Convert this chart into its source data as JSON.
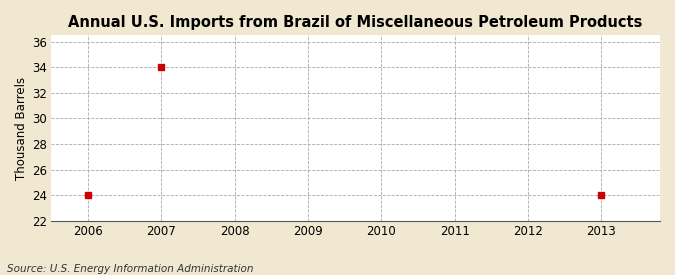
{
  "title": "Annual U.S. Imports from Brazil of Miscellaneous Petroleum Products",
  "ylabel": "Thousand Barrels",
  "source": "Source: U.S. Energy Information Administration",
  "background_color": "#f0e8d0",
  "plot_bg_color": "#ffffff",
  "data_x": [
    2006,
    2007,
    2013
  ],
  "data_y": [
    24,
    34,
    24
  ],
  "marker_color": "#cc0000",
  "marker_style": "s",
  "marker_size": 4,
  "xlim": [
    2005.5,
    2013.8
  ],
  "ylim": [
    22,
    36.5
  ],
  "xticks": [
    2006,
    2007,
    2008,
    2009,
    2010,
    2011,
    2012,
    2013
  ],
  "yticks": [
    22,
    24,
    26,
    28,
    30,
    32,
    34,
    36
  ],
  "grid_color": "#aaaaaa",
  "grid_linestyle": "--",
  "grid_linewidth": 0.6,
  "title_fontsize": 10.5,
  "axis_fontsize": 8.5,
  "source_fontsize": 7.5,
  "ylabel_fontsize": 8.5
}
